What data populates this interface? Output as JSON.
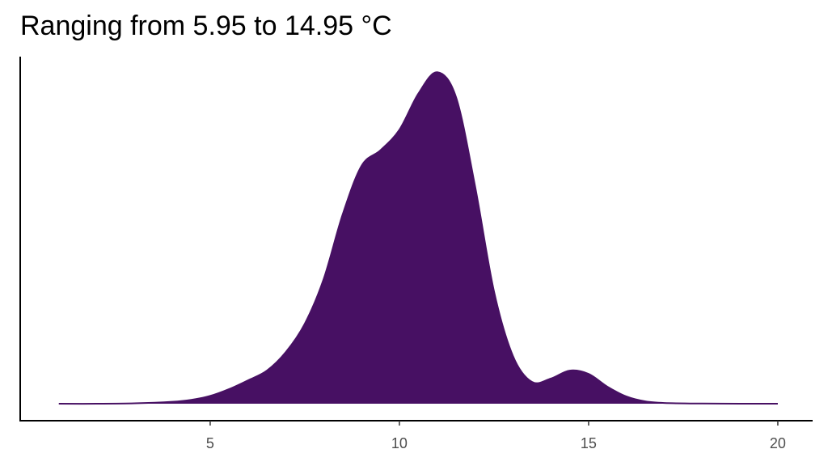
{
  "chart_data": {
    "type": "density",
    "title": "Ranging from 5.95 to 14.95 °C",
    "x": [
      1,
      2,
      3,
      4,
      4.5,
      5,
      5.5,
      6,
      6.5,
      7,
      7.5,
      8,
      8.5,
      9,
      9.5,
      10,
      10.5,
      11,
      11.5,
      12,
      12.5,
      13,
      13.5,
      14,
      14.5,
      15,
      15.5,
      16,
      16.5,
      17,
      18,
      19,
      20
    ],
    "values": [
      0,
      0,
      0.0002,
      0.001,
      0.002,
      0.004,
      0.0075,
      0.012,
      0.017,
      0.0265,
      0.041,
      0.064,
      0.097,
      0.122,
      0.13,
      0.1405,
      0.159,
      0.17,
      0.157,
      0.1115,
      0.0576,
      0.0245,
      0.0112,
      0.0129,
      0.017,
      0.0153,
      0.0087,
      0.0037,
      0.0012,
      0.0004,
      0.0001,
      0,
      0
    ],
    "color": "#471063",
    "xlim": [
      -0.02,
      20.92
    ],
    "xticks": [
      5,
      10,
      15,
      20
    ],
    "ylim": [
      -0.0087,
      0.178
    ]
  }
}
